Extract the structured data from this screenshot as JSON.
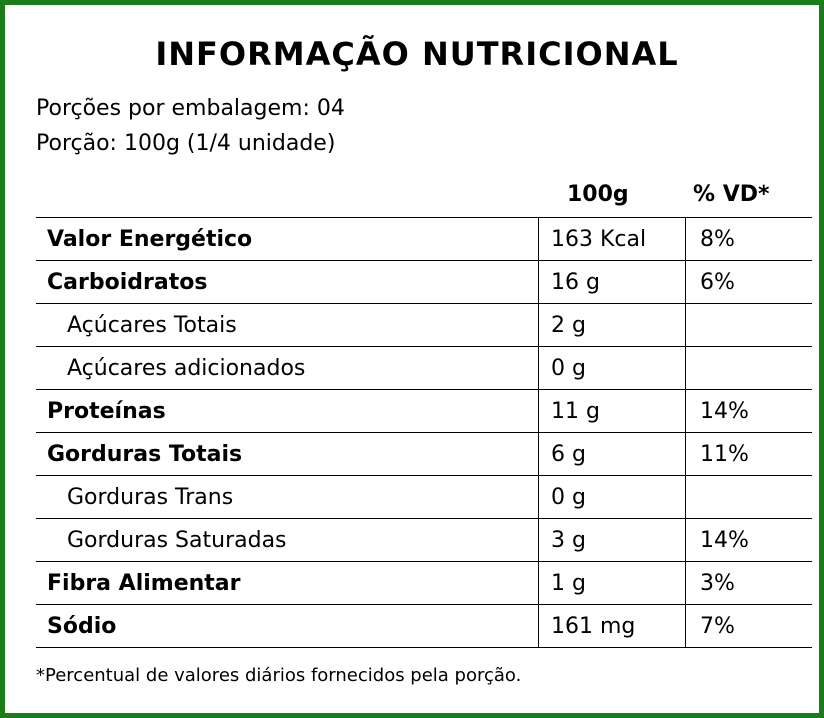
{
  "title": "INFORMAÇÃO NUTRICIONAL",
  "servings_per_package": "Porções por embalagem: 04",
  "serving_size": "Porção: 100g (1/4 unidade)",
  "columns": {
    "amount": "100g",
    "daily_value": "% VD*"
  },
  "rows": [
    {
      "name": "Valor Energético",
      "value": "163 Kcal",
      "dv": "8%",
      "style": "bold"
    },
    {
      "name": "Carboidratos",
      "value": "16 g",
      "dv": "6%",
      "style": "bold"
    },
    {
      "name": "Açúcares Totais",
      "value": "2 g",
      "dv": "",
      "style": "sub"
    },
    {
      "name": "Açúcares adicionados",
      "value": "0 g",
      "dv": "",
      "style": "sub"
    },
    {
      "name": "Proteínas",
      "value": "11 g",
      "dv": "14%",
      "style": "bold"
    },
    {
      "name": "Gorduras Totais",
      "value": "6 g",
      "dv": "11%",
      "style": "bold"
    },
    {
      "name": "Gorduras Trans",
      "value": "0 g",
      "dv": "",
      "style": "sub"
    },
    {
      "name": "Gorduras Saturadas",
      "value": "3 g",
      "dv": "14%",
      "style": "sub"
    },
    {
      "name": "Fibra Alimentar",
      "value": "1 g",
      "dv": "3%",
      "style": "bold"
    },
    {
      "name": "Sódio",
      "value": "161 mg",
      "dv": "7%",
      "style": "bold"
    }
  ],
  "footnote": "*Percentual de valores diários fornecidos pela porção.",
  "colors": {
    "border": "#1a7d1a",
    "text": "#000000",
    "background": "#ffffff"
  }
}
